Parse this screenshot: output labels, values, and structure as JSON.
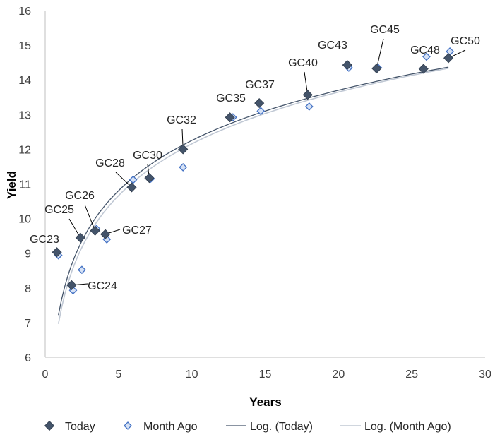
{
  "chart_data": {
    "type": "scatter",
    "title": "",
    "xlabel": "Years",
    "ylabel": "Yield",
    "xlim": [
      0,
      30
    ],
    "ylim": [
      6,
      16
    ],
    "x_ticks": [
      0,
      5,
      10,
      15,
      20,
      25,
      30
    ],
    "y_ticks": [
      6,
      7,
      8,
      9,
      10,
      11,
      12,
      13,
      14,
      15,
      16
    ],
    "grid": false,
    "legend_position": "bottom",
    "series": [
      {
        "name": "Today",
        "marker": "diamond-filled",
        "color": "#44546a",
        "points": [
          {
            "label": "GC23",
            "x": 0.8,
            "y": 9.03
          },
          {
            "label": "GC24",
            "x": 1.8,
            "y": 8.08
          },
          {
            "label": "GC25",
            "x": 2.4,
            "y": 9.45
          },
          {
            "label": "GC26",
            "x": 3.4,
            "y": 9.65
          },
          {
            "label": "GC27",
            "x": 4.1,
            "y": 9.55
          },
          {
            "label": "GC28",
            "x": 5.9,
            "y": 10.9
          },
          {
            "label": "GC30",
            "x": 7.1,
            "y": 11.17
          },
          {
            "label": "GC32",
            "x": 9.4,
            "y": 12.0
          },
          {
            "label": "GC35",
            "x": 12.6,
            "y": 12.92
          },
          {
            "label": "GC37",
            "x": 14.6,
            "y": 13.33
          },
          {
            "label": "GC40",
            "x": 17.9,
            "y": 13.57
          },
          {
            "label": "GC43",
            "x": 20.6,
            "y": 14.43
          },
          {
            "label": "GC45",
            "x": 22.6,
            "y": 14.33
          },
          {
            "label": "GC48",
            "x": 25.8,
            "y": 14.32
          },
          {
            "label": "GC50",
            "x": 27.5,
            "y": 14.63
          }
        ]
      },
      {
        "name": "Month Ago",
        "marker": "diamond-open",
        "color": "#4472c4",
        "points": [
          {
            "x": 0.9,
            "y": 8.94
          },
          {
            "x": 1.9,
            "y": 7.93
          },
          {
            "x": 2.5,
            "y": 8.52
          },
          {
            "x": 3.5,
            "y": 9.7
          },
          {
            "x": 4.2,
            "y": 9.4
          },
          {
            "x": 6.0,
            "y": 11.12
          },
          {
            "x": 7.2,
            "y": 11.15
          },
          {
            "x": 9.4,
            "y": 11.48
          },
          {
            "x": 12.8,
            "y": 12.92
          },
          {
            "x": 14.7,
            "y": 13.1
          },
          {
            "x": 18.0,
            "y": 13.23
          },
          {
            "x": 20.7,
            "y": 14.35
          },
          {
            "x": 22.7,
            "y": 14.35
          },
          {
            "x": 26.0,
            "y": 14.67
          },
          {
            "x": 27.6,
            "y": 14.82
          }
        ]
      }
    ],
    "trendlines": [
      {
        "name": "Log. (Today)",
        "type": "log",
        "a": 7.437,
        "b": 2.0915,
        "x_range": [
          0.9,
          27.5
        ],
        "color": "#44546a"
      },
      {
        "name": "Log. (Month Ago)",
        "type": "log",
        "a": 7.191,
        "b": 2.1559,
        "x_range": [
          0.9,
          27.5
        ],
        "color": "#c0c8d4"
      }
    ],
    "legend": [
      "Today",
      "Month Ago",
      "Log. (Today)",
      "Log. (Month Ago)"
    ]
  }
}
